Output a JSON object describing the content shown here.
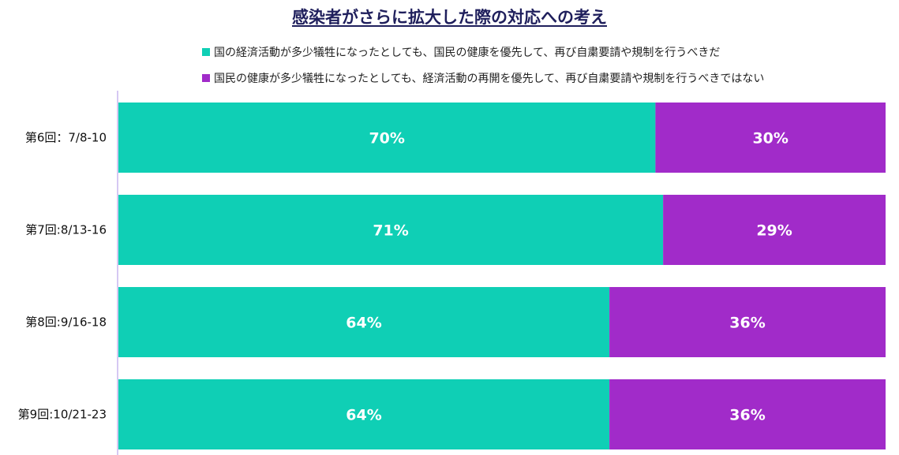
{
  "chart_data": {
    "type": "bar",
    "orientation": "horizontal",
    "stacked": true,
    "percent_stacked": true,
    "title": "感染者がさらに拡大した際の対応への考え",
    "categories": [
      "第6回：7/8-10",
      "第7回:8/13-16",
      "第8回:9/16-18",
      "第9回:10/21-23"
    ],
    "series": [
      {
        "name": "国の経済活動が多少犠牲になったとしても、国民の健康を優先して、再び自粛要請や規制を行うべきだ",
        "color": "#0fcfb5",
        "values": [
          70,
          71,
          64,
          64
        ],
        "labels": [
          "70%",
          "71%",
          "64%",
          "64%"
        ]
      },
      {
        "name": "国民の健康が多少犠牲になったとしても、経済活動の再開を優先して、再び自粛要請や規制を行うべきではない",
        "color": "#a12bc9",
        "values": [
          30,
          29,
          36,
          36
        ],
        "labels": [
          "30%",
          "29%",
          "36%",
          "36%"
        ]
      }
    ],
    "xlim": [
      0,
      100
    ],
    "legend_position": "top",
    "grid": false
  }
}
